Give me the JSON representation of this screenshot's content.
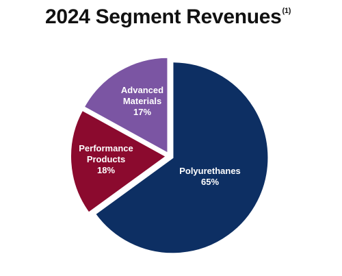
{
  "title": {
    "text": "2024 Segment Revenues",
    "footnote": "(1)"
  },
  "colors": {
    "polyurethanes": "#0d2f63",
    "performance_products": "#8b0a2e",
    "advanced_materials": "#7b55a3"
  },
  "chart_data": {
    "type": "pie",
    "title": "2024 Segment Revenues",
    "unit": "%",
    "start_angle_deg": 0,
    "direction": "clockwise",
    "slices": [
      {
        "label": "Polyurethanes",
        "label_lines": [
          "Polyurethanes"
        ],
        "value": 65,
        "value_label": "65%",
        "color": "#0d2f63"
      },
      {
        "label": "Performance Products",
        "label_lines": [
          "Performance",
          "Products"
        ],
        "value": 18,
        "value_label": "18%",
        "color": "#8b0a2e"
      },
      {
        "label": "Advanced Materials",
        "label_lines": [
          "Advanced",
          "Materials"
        ],
        "value": 17,
        "value_label": "17%",
        "color": "#7b55a3"
      }
    ]
  }
}
